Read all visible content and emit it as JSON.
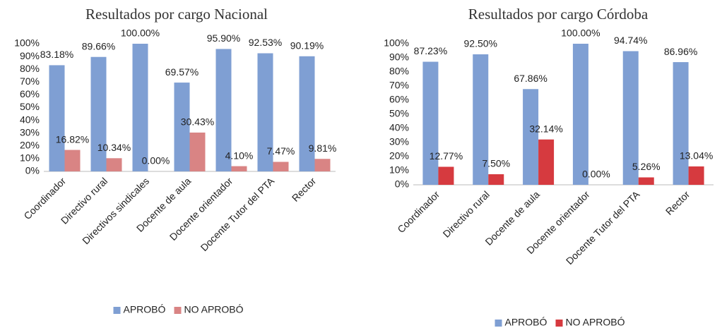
{
  "chart_data": [
    {
      "type": "bar",
      "title": "Resultados por cargo Nacional",
      "categories": [
        "Coordinador",
        "Directivo rural",
        "Directivos sindicales",
        "Docente de aula",
        "Docente orientador",
        "Docente Tutor del PTA",
        "Rector"
      ],
      "series": [
        {
          "name": "APROBÓ",
          "color": "#7f9fd3",
          "values": [
            83.18,
            89.66,
            100,
            69.57,
            95.9,
            92.53,
            90.19
          ],
          "value_labels": [
            "83.18%",
            "89.66%",
            "100.00%",
            "69.57%",
            "95.90%",
            "92.53%",
            "90.19%"
          ]
        },
        {
          "name": "NO APROBÓ",
          "color": "#d98484",
          "values": [
            16.82,
            10.34,
            0,
            30.43,
            4.1,
            7.47,
            9.81
          ],
          "value_labels": [
            "16.82%",
            "10.34%",
            "0.00%",
            "30.43%",
            "4.10%",
            "7.47%",
            "9.81%"
          ]
        }
      ],
      "ylim": [
        0,
        100
      ],
      "yticks": [
        {
          "value": 0,
          "label": "0%"
        },
        {
          "value": 10,
          "label": "10%"
        },
        {
          "value": 20,
          "label": "20%"
        },
        {
          "value": 30,
          "label": "30%"
        },
        {
          "value": 40,
          "label": "40%"
        },
        {
          "value": 50,
          "label": "50%"
        },
        {
          "value": 60,
          "label": "60%"
        },
        {
          "value": 70,
          "label": "70%"
        },
        {
          "value": 80,
          "label": "80%"
        },
        {
          "value": 90,
          "label": "90%"
        },
        {
          "value": 100,
          "label": "100%"
        }
      ],
      "grid": false,
      "legend": "bottom"
    },
    {
      "type": "bar",
      "title": "Resultados por cargo Córdoba",
      "categories": [
        "Coordinador",
        "Directivo rural",
        "Docente de aula",
        "Docente orientador",
        "Docente Tutor del PTA",
        "Rector"
      ],
      "series": [
        {
          "name": "APROBÓ",
          "color": "#7f9fd3",
          "values": [
            87.23,
            92.5,
            67.86,
            100,
            94.74,
            86.96
          ],
          "value_labels": [
            "87.23%",
            "92.50%",
            "67.86%",
            "100.00%",
            "94.74%",
            "86.96%"
          ]
        },
        {
          "name": "NO APROBÓ",
          "color": "#d63a3f",
          "values": [
            12.77,
            7.5,
            32.14,
            0,
            5.26,
            13.04
          ],
          "value_labels": [
            "12.77%",
            "7.50%",
            "32.14%",
            "0.00%",
            "5.26%",
            "13.04%"
          ]
        }
      ],
      "ylim": [
        0,
        100
      ],
      "yticks": [
        {
          "value": 0,
          "label": "0%"
        },
        {
          "value": 10,
          "label": "10%"
        },
        {
          "value": 20,
          "label": "20%"
        },
        {
          "value": 30,
          "label": "30%"
        },
        {
          "value": 40,
          "label": "40%"
        },
        {
          "value": 50,
          "label": "50%"
        },
        {
          "value": 60,
          "label": "60%"
        },
        {
          "value": 70,
          "label": "70%"
        },
        {
          "value": 80,
          "label": "80%"
        },
        {
          "value": 90,
          "label": "90%"
        },
        {
          "value": 100,
          "label": "100%"
        }
      ],
      "grid": false,
      "legend": "bottom"
    }
  ]
}
